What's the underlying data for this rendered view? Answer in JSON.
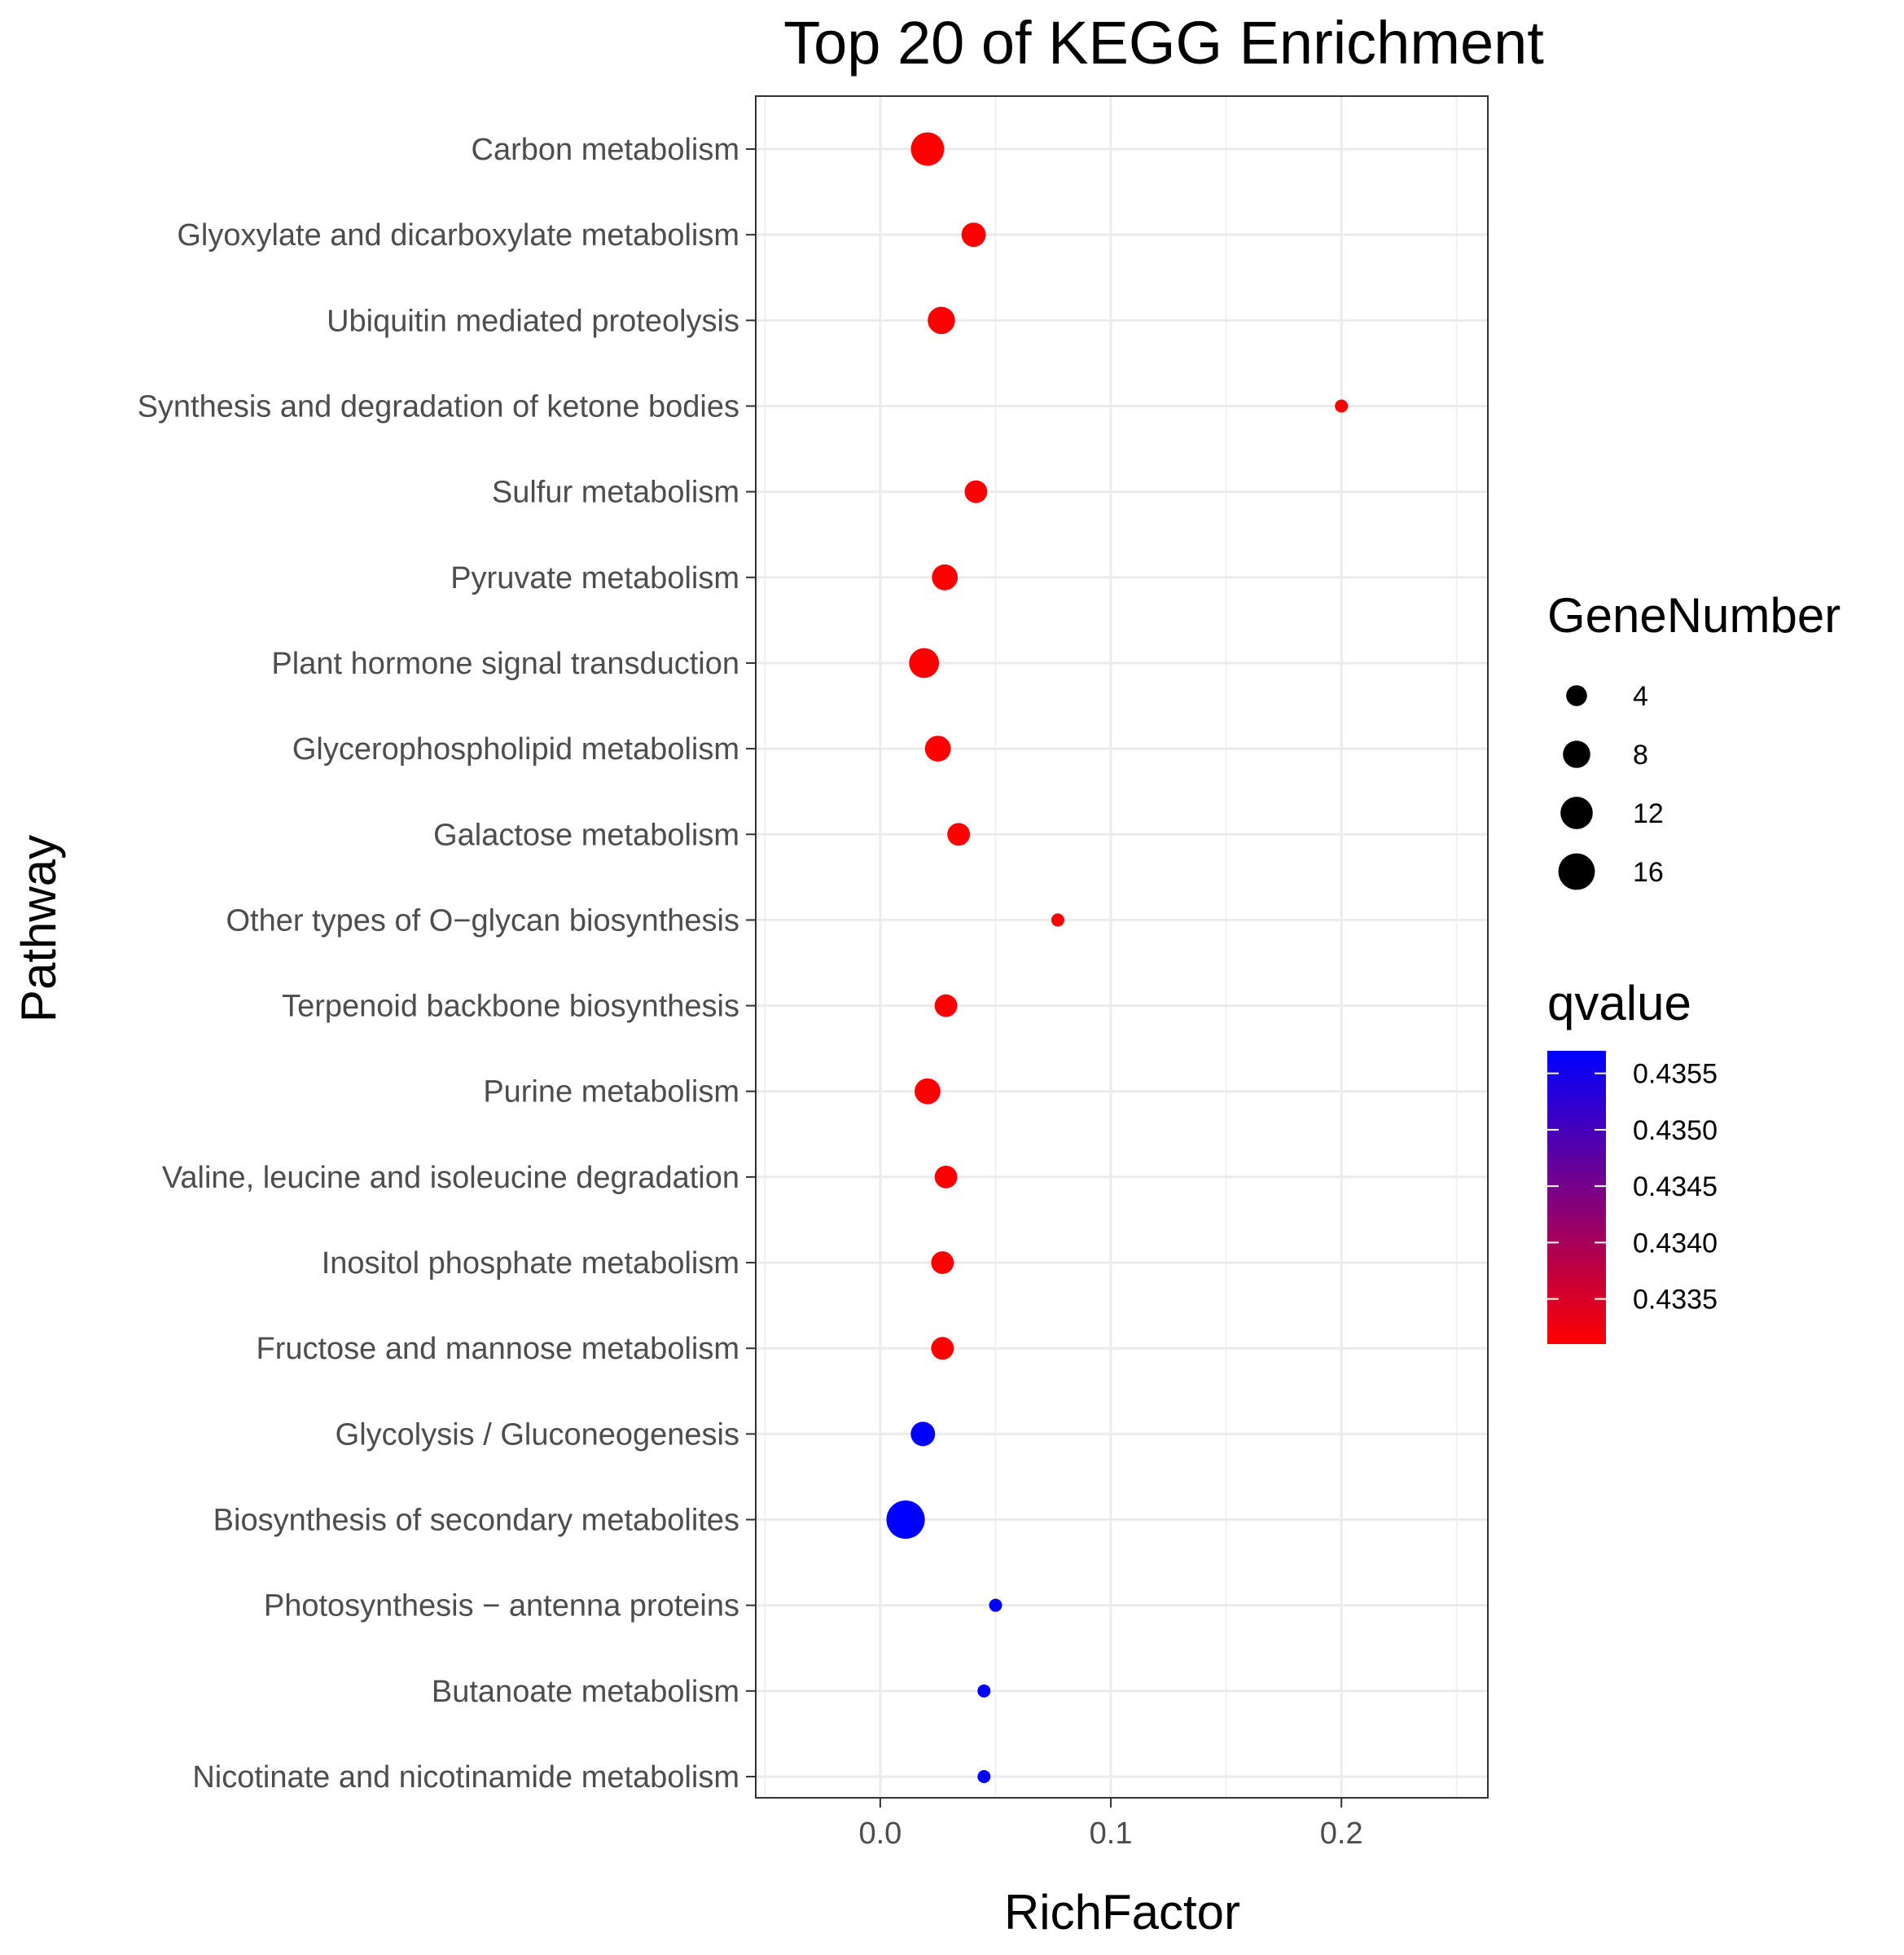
{
  "chart_data": {
    "type": "scatter",
    "title": "Top 20 of KEGG Enrichment",
    "xlabel": "RichFactor",
    "ylabel": "Pathway",
    "xlim": [
      -0.054,
      0.2635
    ],
    "x_ticks": [
      0.0,
      0.1,
      0.2
    ],
    "x_tick_labels": [
      "0.0",
      "0.1",
      "0.2"
    ],
    "grid": true,
    "legend_position": "right",
    "points": [
      {
        "pathway": "Carbon metabolism",
        "rich_factor": 0.0205,
        "gene_number": 13,
        "qvalue": 0.4331
      },
      {
        "pathway": "Glyoxylate and dicarboxylate metabolism",
        "rich_factor": 0.0405,
        "gene_number": 6,
        "qvalue": 0.4331
      },
      {
        "pathway": "Ubiquitin mediated proteolysis",
        "rich_factor": 0.0265,
        "gene_number": 8,
        "qvalue": 0.4331
      },
      {
        "pathway": "Synthesis and degradation of ketone bodies",
        "rich_factor": 0.2,
        "gene_number": 1,
        "qvalue": 0.4331
      },
      {
        "pathway": "Sulfur metabolism",
        "rich_factor": 0.0415,
        "gene_number": 5,
        "qvalue": 0.4331
      },
      {
        "pathway": "Pyruvate metabolism",
        "rich_factor": 0.028,
        "gene_number": 7,
        "qvalue": 0.4331
      },
      {
        "pathway": "Plant hormone signal transduction",
        "rich_factor": 0.019,
        "gene_number": 10,
        "qvalue": 0.4331
      },
      {
        "pathway": "Glycerophospholipid metabolism",
        "rich_factor": 0.025,
        "gene_number": 7,
        "qvalue": 0.4331
      },
      {
        "pathway": "Galactose metabolism",
        "rich_factor": 0.034,
        "gene_number": 5,
        "qvalue": 0.4331
      },
      {
        "pathway": "Other types of O−glycan biosynthesis",
        "rich_factor": 0.077,
        "gene_number": 1,
        "qvalue": 0.4331
      },
      {
        "pathway": "Terpenoid backbone biosynthesis",
        "rich_factor": 0.0285,
        "gene_number": 5,
        "qvalue": 0.4331
      },
      {
        "pathway": "Purine metabolism",
        "rich_factor": 0.0205,
        "gene_number": 7,
        "qvalue": 0.4331
      },
      {
        "pathway": "Valine, leucine and isoleucine degradation",
        "rich_factor": 0.0285,
        "gene_number": 5,
        "qvalue": 0.4331
      },
      {
        "pathway": "Inositol phosphate metabolism",
        "rich_factor": 0.027,
        "gene_number": 5,
        "qvalue": 0.4331
      },
      {
        "pathway": "Fructose and mannose metabolism",
        "rich_factor": 0.027,
        "gene_number": 5,
        "qvalue": 0.4331
      },
      {
        "pathway": "Glycolysis / Gluconeogenesis",
        "rich_factor": 0.0185,
        "gene_number": 6,
        "qvalue": 0.4357
      },
      {
        "pathway": "Biosynthesis of secondary metabolites",
        "rich_factor": 0.011,
        "gene_number": 18,
        "qvalue": 0.4357
      },
      {
        "pathway": "Photosynthesis − antenna proteins",
        "rich_factor": 0.05,
        "gene_number": 1,
        "qvalue": 0.4357
      },
      {
        "pathway": "Butanoate metabolism",
        "rich_factor": 0.045,
        "gene_number": 1,
        "qvalue": 0.4357
      },
      {
        "pathway": "Nicotinate and nicotinamide metabolism",
        "rich_factor": 0.045,
        "gene_number": 1,
        "qvalue": 0.4357
      }
    ],
    "size_legend": {
      "title": "GeneNumber",
      "values": [
        4,
        8,
        12,
        16
      ],
      "labels": [
        "4",
        "8",
        "12",
        "16"
      ]
    },
    "color_legend": {
      "title": "qvalue",
      "range": [
        0.4331,
        0.4357
      ],
      "ticks": [
        0.4335,
        0.434,
        0.4345,
        0.435,
        0.4355
      ],
      "labels": [
        "0.4335",
        "0.4340",
        "0.4345",
        "0.4350",
        "0.4355"
      ],
      "low_color": "#ff0000",
      "high_color": "#0000ff"
    }
  }
}
